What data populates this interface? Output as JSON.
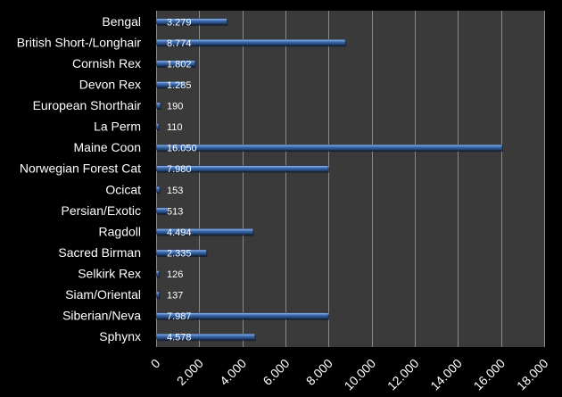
{
  "chart_data": {
    "type": "bar",
    "orientation": "horizontal",
    "categories": [
      "Bengal",
      "British Short-/Longhair",
      "Cornish Rex",
      "Devon Rex",
      "European Shorthair",
      "La Perm",
      "Maine Coon",
      "Norwegian Forest Cat",
      "Ocicat",
      "Persian/Exotic",
      "Ragdoll",
      "Sacred Birman",
      "Selkirk Rex",
      "Siam/Oriental",
      "Siberian/Neva",
      "Sphynx"
    ],
    "values": [
      3279,
      8774,
      1802,
      1285,
      190,
      110,
      16050,
      7980,
      153,
      513,
      4494,
      2335,
      126,
      137,
      7987,
      4578
    ],
    "data_labels": [
      "3.279",
      "8.774",
      "1.802",
      "1.285",
      "190",
      "110",
      "16.050",
      "7.980",
      "153",
      "513",
      "4.494",
      "2.335",
      "126",
      "137",
      "7.987",
      "4.578"
    ],
    "x_ticks": [
      0,
      2000,
      4000,
      6000,
      8000,
      10000,
      12000,
      14000,
      16000,
      18000
    ],
    "x_tick_labels": [
      "0",
      "2.000",
      "4.000",
      "6.000",
      "8.000",
      "10.000",
      "12.000",
      "14.000",
      "16.000",
      "18.000"
    ],
    "xlim": [
      0,
      18000
    ],
    "grid": true,
    "legend": "none",
    "title": "",
    "xlabel": "",
    "ylabel": "",
    "colors": {
      "background": "#000000",
      "plot_area": "#3a3a3a",
      "bar": "#3d6bb0",
      "bar_highlight": "#9cc0ee",
      "bar_shadow": "#1e3b66",
      "text": "#ffffff",
      "grid": "#8a8a8a"
    }
  }
}
